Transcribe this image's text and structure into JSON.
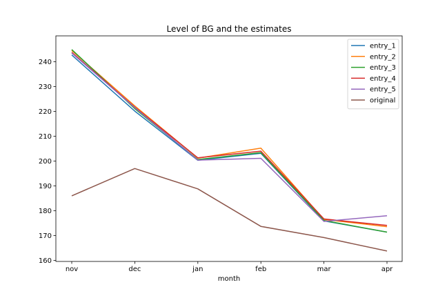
{
  "chart_data": {
    "type": "line",
    "title": "Level of BG and the estimates",
    "xlabel": "month",
    "ylabel": "",
    "categories": [
      "nov",
      "dec",
      "jan",
      "feb",
      "mar",
      "apr"
    ],
    "ylim": [
      159.6,
      250.4
    ],
    "yticks": [
      160,
      170,
      180,
      190,
      200,
      210,
      220,
      230,
      240
    ],
    "grid": false,
    "legend_position": "top-right",
    "series": [
      {
        "name": "entry_1",
        "color": "#1f77b4",
        "values": [
          242.7,
          220.1,
          200.3,
          203.1,
          175.9,
          171.4
        ]
      },
      {
        "name": "entry_2",
        "color": "#ff7f0e",
        "values": [
          244.5,
          222.2,
          201.2,
          205.2,
          176.5,
          173.6
        ]
      },
      {
        "name": "entry_3",
        "color": "#2ca02c",
        "values": [
          244.9,
          221.1,
          200.6,
          203.4,
          176.1,
          171.4
        ]
      },
      {
        "name": "entry_4",
        "color": "#d62728",
        "values": [
          243.8,
          221.7,
          201.3,
          204.0,
          176.7,
          174.1
        ]
      },
      {
        "name": "entry_5",
        "color": "#9467bd",
        "values": [
          243.5,
          221.5,
          200.4,
          201.1,
          175.7,
          178.0
        ]
      },
      {
        "name": "original",
        "color": "#8c564b",
        "values": [
          186.0,
          197.0,
          188.8,
          173.7,
          169.2,
          163.8
        ]
      }
    ]
  }
}
